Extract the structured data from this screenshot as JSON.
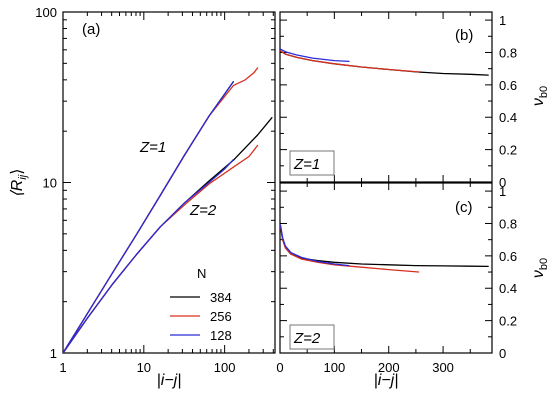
{
  "colors": {
    "384": "#000000",
    "256": "#d7301f",
    "128": "#2b2bd8"
  },
  "chart_data": [
    {
      "id": "a",
      "type": "line",
      "panel_label": "(a)",
      "xlabel": "|i−j|",
      "ylabel": "⟨R",
      "ylabel_sub": "ij",
      "ylabel_close": "⟩",
      "x_scale": "log",
      "y_scale": "log",
      "xlim": [
        1,
        420
      ],
      "ylim": [
        1,
        100
      ],
      "x_tick_labels": [
        "1",
        "10",
        "100"
      ],
      "y_tick_labels": [
        "1",
        "10",
        "100"
      ],
      "annotations": [
        {
          "text": "Z=1"
        },
        {
          "text": "Z=2"
        }
      ],
      "legend": {
        "title": "N",
        "entries": [
          "384",
          "256",
          "128"
        ],
        "placement": "lower-right"
      },
      "series": [
        {
          "name": "384",
          "group": "Z=1",
          "x": [
            1,
            2,
            4,
            8,
            16,
            32,
            64,
            128
          ],
          "y": [
            1,
            1.7,
            2.9,
            4.9,
            8.4,
            14.5,
            24.5,
            39
          ]
        },
        {
          "name": "256",
          "group": "Z=1",
          "x": [
            1,
            2,
            4,
            8,
            16,
            32,
            64,
            128,
            180,
            230,
            256
          ],
          "y": [
            1,
            1.7,
            2.9,
            4.9,
            8.4,
            14.5,
            24.5,
            37,
            40,
            44,
            47
          ]
        },
        {
          "name": "128",
          "group": "Z=1",
          "x": [
            1,
            2,
            4,
            8,
            16,
            32,
            64,
            100,
            128
          ],
          "y": [
            1,
            1.7,
            2.9,
            4.9,
            8.4,
            14.5,
            24.5,
            33,
            39
          ]
        },
        {
          "name": "384",
          "group": "Z=2",
          "x": [
            1,
            2,
            4,
            8,
            16,
            32,
            64,
            128,
            256,
            384
          ],
          "y": [
            1,
            1.6,
            2.5,
            3.75,
            5.5,
            7.6,
            10.2,
            13.5,
            19,
            24
          ]
        },
        {
          "name": "256",
          "group": "Z=2",
          "x": [
            1,
            2,
            4,
            8,
            16,
            32,
            64,
            128,
            200,
            256
          ],
          "y": [
            1,
            1.6,
            2.5,
            3.75,
            5.5,
            7.4,
            9.8,
            12.3,
            14.2,
            16.5
          ]
        },
        {
          "name": "128",
          "group": "Z=2",
          "x": [
            1,
            2,
            4,
            8,
            16,
            32,
            64,
            100,
            128
          ],
          "y": [
            1,
            1.6,
            2.5,
            3.75,
            5.5,
            7.6,
            10.0,
            12.0,
            13.6
          ]
        }
      ]
    },
    {
      "id": "b",
      "type": "line",
      "panel_label": "(b)",
      "annotation_box": "Z=1",
      "ylabel": "ν",
      "ylabel_sub": "b0",
      "xlim": [
        0,
        390
      ],
      "ylim": [
        0,
        1.05
      ],
      "y_ticks": [
        0,
        0.2,
        0.4,
        0.6,
        0.8,
        1
      ],
      "y_tick_labels": [
        "0",
        "0.2",
        "0.4",
        "0.6",
        "0.8",
        "1"
      ],
      "series": [
        {
          "name": "384",
          "x": [
            1,
            10,
            30,
            60,
            100,
            150,
            200,
            250,
            300,
            350,
            383
          ],
          "y": [
            0.81,
            0.79,
            0.77,
            0.75,
            0.73,
            0.71,
            0.695,
            0.68,
            0.67,
            0.665,
            0.66
          ]
        },
        {
          "name": "256",
          "x": [
            1,
            10,
            30,
            60,
            100,
            150,
            200,
            255
          ],
          "y": [
            0.81,
            0.79,
            0.77,
            0.75,
            0.73,
            0.71,
            0.695,
            0.68
          ]
        },
        {
          "name": "128",
          "x": [
            1,
            10,
            30,
            60,
            100,
            127
          ],
          "y": [
            0.82,
            0.805,
            0.785,
            0.765,
            0.75,
            0.745
          ]
        }
      ]
    },
    {
      "id": "c",
      "type": "line",
      "panel_label": "(c)",
      "annotation_box": "Z=2",
      "xlabel": "|i−j|",
      "ylabel": "ν",
      "ylabel_sub": "b0",
      "xlim": [
        0,
        390
      ],
      "ylim": [
        0,
        1.05
      ],
      "x_ticks": [
        0,
        100,
        200,
        300
      ],
      "x_tick_labels": [
        "0",
        "100",
        "200",
        "300"
      ],
      "y_ticks": [
        0,
        0.2,
        0.4,
        0.6,
        0.8,
        1
      ],
      "y_tick_labels": [
        "0",
        "0.2",
        "0.4",
        "0.6",
        "0.8",
        "1"
      ],
      "series": [
        {
          "name": "384",
          "x": [
            1,
            5,
            10,
            20,
            40,
            70,
            100,
            150,
            200,
            250,
            300,
            350,
            383
          ],
          "y": [
            0.78,
            0.7,
            0.65,
            0.61,
            0.585,
            0.57,
            0.56,
            0.55,
            0.545,
            0.54,
            0.538,
            0.536,
            0.535
          ]
        },
        {
          "name": "256",
          "x": [
            1,
            5,
            10,
            20,
            40,
            70,
            100,
            150,
            200,
            255
          ],
          "y": [
            0.78,
            0.7,
            0.65,
            0.61,
            0.58,
            0.56,
            0.545,
            0.53,
            0.515,
            0.5
          ]
        },
        {
          "name": "128",
          "x": [
            1,
            5,
            10,
            20,
            40,
            70,
            100,
            127
          ],
          "y": [
            0.79,
            0.71,
            0.66,
            0.62,
            0.59,
            0.565,
            0.55,
            0.54
          ]
        }
      ]
    }
  ]
}
